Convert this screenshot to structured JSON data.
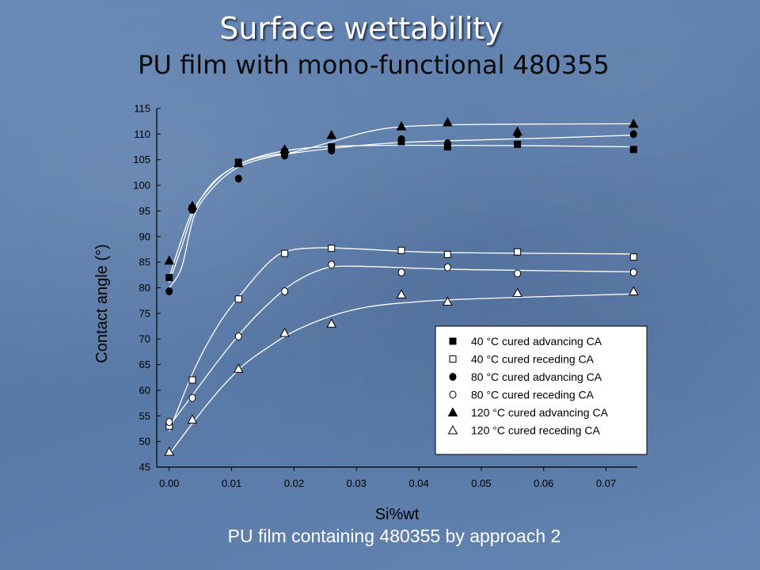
{
  "slide": {
    "title": "Surface wettability",
    "subtitle": "PU film with mono-functional 480355",
    "caption": "PU film containing 480355 by approach 2"
  },
  "chart_data": {
    "type": "scatter",
    "xlabel": "Si%wt",
    "ylabel": "Contact angle (°)",
    "xlim": [
      -0.002,
      0.075
    ],
    "ylim": [
      45,
      115
    ],
    "xticks": [
      0.0,
      0.01,
      0.02,
      0.03,
      0.04,
      0.05,
      0.06,
      0.07
    ],
    "xtick_labels": [
      "0.00",
      "0.01",
      "0.02",
      "0.03",
      "0.04",
      "0.05",
      "0.06",
      "0.07"
    ],
    "yticks": [
      45,
      50,
      55,
      60,
      65,
      70,
      75,
      80,
      85,
      90,
      95,
      100,
      105,
      110,
      115
    ],
    "ytick_labels": [
      "45",
      "50",
      "55",
      "60",
      "65",
      "70",
      "75",
      "80",
      "85",
      "90",
      "95",
      "100",
      "105",
      "110",
      "115"
    ],
    "legend_position": "bottom-right",
    "marker_color": "#000000",
    "plot_background": "#ffffff",
    "series": [
      {
        "name": "40 °C cured advancing CA",
        "marker": "square-filled",
        "x": [
          0.0,
          0.0037,
          0.0111,
          0.0185,
          0.026,
          0.0372,
          0.0446,
          0.0558,
          0.0744
        ],
        "y": [
          82,
          95.5,
          104.5,
          106.5,
          107.5,
          108.5,
          107.5,
          108,
          107
        ],
        "fit": [
          [
            0.0,
            81
          ],
          [
            0.002,
            88
          ],
          [
            0.004,
            95
          ],
          [
            0.007,
            100.5
          ],
          [
            0.011,
            104
          ],
          [
            0.015,
            105.8
          ],
          [
            0.02,
            107
          ],
          [
            0.026,
            107.6
          ],
          [
            0.035,
            107.8
          ],
          [
            0.045,
            107.8
          ],
          [
            0.06,
            107.7
          ],
          [
            0.0744,
            107.5
          ]
        ]
      },
      {
        "name": "40 °C cured receding CA",
        "marker": "square-open",
        "x": [
          0.0,
          0.0037,
          0.0111,
          0.0185,
          0.026,
          0.0372,
          0.0446,
          0.0558,
          0.0744
        ],
        "y": [
          53,
          62,
          77.8,
          86.7,
          87.7,
          87.3,
          86.5,
          87,
          86
        ],
        "fit": [
          [
            0.0,
            52
          ],
          [
            0.004,
            64
          ],
          [
            0.008,
            73
          ],
          [
            0.012,
            79.5
          ],
          [
            0.016,
            85
          ],
          [
            0.019,
            87.2
          ],
          [
            0.024,
            87.8
          ],
          [
            0.03,
            87.6
          ],
          [
            0.04,
            87
          ],
          [
            0.05,
            86.8
          ],
          [
            0.0744,
            86.6
          ]
        ]
      },
      {
        "name": "80 °C cured advancing CA",
        "marker": "circle-filled",
        "x": [
          0.0,
          0.0037,
          0.0111,
          0.0185,
          0.026,
          0.0372,
          0.0446,
          0.0558,
          0.0744
        ],
        "y": [
          79.3,
          95.2,
          101.3,
          105.8,
          106.8,
          109,
          108.2,
          110,
          110
        ],
        "fit": [
          [
            0.0,
            80
          ],
          [
            0.002,
            84
          ],
          [
            0.004,
            94
          ],
          [
            0.007,
            99.5
          ],
          [
            0.011,
            103.5
          ],
          [
            0.016,
            105.5
          ],
          [
            0.02,
            106.3
          ],
          [
            0.026,
            107.2
          ],
          [
            0.035,
            108.2
          ],
          [
            0.045,
            108.7
          ],
          [
            0.06,
            109.2
          ],
          [
            0.0744,
            109.8
          ]
        ]
      },
      {
        "name": "80 °C cured receding CA",
        "marker": "circle-open",
        "x": [
          0.0,
          0.0037,
          0.0111,
          0.0185,
          0.026,
          0.0372,
          0.0446,
          0.0558,
          0.0744
        ],
        "y": [
          53.8,
          58.5,
          70.5,
          79.3,
          84.5,
          83,
          84,
          82.8,
          83
        ],
        "fit": [
          [
            0.0,
            53
          ],
          [
            0.004,
            59.5
          ],
          [
            0.008,
            66
          ],
          [
            0.012,
            72
          ],
          [
            0.016,
            77
          ],
          [
            0.02,
            81
          ],
          [
            0.025,
            83.8
          ],
          [
            0.03,
            84.2
          ],
          [
            0.04,
            83.8
          ],
          [
            0.05,
            83.5
          ],
          [
            0.0744,
            83.1
          ]
        ]
      },
      {
        "name": "120 °C cured advancing CA",
        "marker": "triangle-filled",
        "x": [
          0.0,
          0.0037,
          0.0111,
          0.0185,
          0.026,
          0.0372,
          0.0446,
          0.0558,
          0.0744
        ],
        "y": [
          85.3,
          96,
          104.3,
          107,
          109.8,
          111.5,
          112.3,
          110.5,
          112
        ],
        "fit": [
          [
            0.0,
            82
          ],
          [
            0.002,
            89.5
          ],
          [
            0.004,
            95.5
          ],
          [
            0.008,
            101.5
          ],
          [
            0.012,
            104.5
          ],
          [
            0.016,
            105.8
          ],
          [
            0.02,
            106.5
          ],
          [
            0.026,
            108.5
          ],
          [
            0.032,
            110.5
          ],
          [
            0.038,
            111.5
          ],
          [
            0.05,
            111.9
          ],
          [
            0.0744,
            112
          ]
        ]
      },
      {
        "name": "120 °C cured receding CA",
        "marker": "triangle-open",
        "x": [
          0.0,
          0.0037,
          0.0111,
          0.0185,
          0.026,
          0.0372,
          0.0446,
          0.0558,
          0.0744
        ],
        "y": [
          48,
          54.3,
          64.2,
          71.2,
          73,
          78.7,
          77.3,
          79,
          79.3
        ],
        "fit": [
          [
            0.0,
            47.5
          ],
          [
            0.004,
            54
          ],
          [
            0.008,
            60
          ],
          [
            0.012,
            65
          ],
          [
            0.016,
            68.5
          ],
          [
            0.02,
            71.5
          ],
          [
            0.026,
            74.5
          ],
          [
            0.032,
            76.3
          ],
          [
            0.04,
            77.3
          ],
          [
            0.05,
            77.9
          ],
          [
            0.0744,
            78.8
          ]
        ]
      }
    ]
  }
}
